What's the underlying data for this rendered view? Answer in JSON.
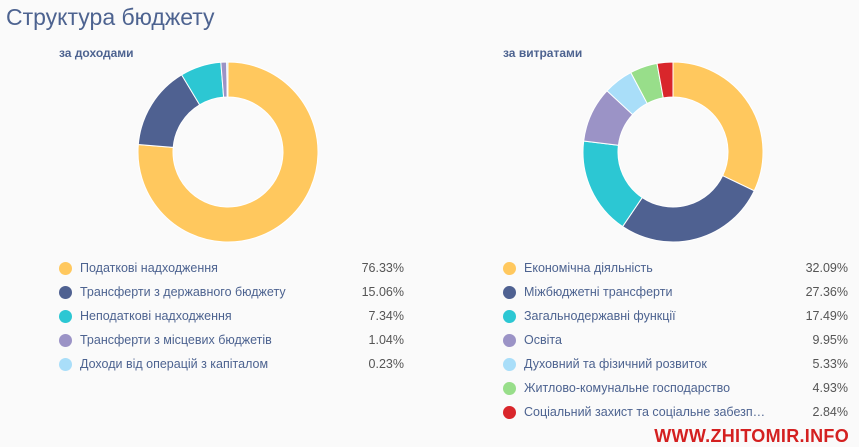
{
  "title": "Структура бюджету",
  "watermark": "WWW.ZHITOMIR.INFO",
  "chart_data": [
    {
      "type": "pie",
      "subtitle": "за доходами",
      "donut": true,
      "labels": [
        "Податкові надходження",
        "Трансферти з державного бюджету",
        "Неподаткові надходження",
        "Трансферти з місцевих бюджетів",
        "Доходи від операцій з капіталом"
      ],
      "values": [
        76.33,
        15.06,
        7.34,
        1.04,
        0.23
      ],
      "value_labels": [
        "76.33%",
        "15.06%",
        "7.34%",
        "1.04%",
        "0.23%"
      ],
      "colors": [
        "#FFC85E",
        "#4F6191",
        "#2CC7D3",
        "#9B93C6",
        "#A9DEF9"
      ],
      "legend": "bottom"
    },
    {
      "type": "pie",
      "subtitle": "за витратами",
      "donut": true,
      "labels": [
        "Економічна діяльність",
        "Міжбюджетні трансферти",
        "Загальнодержавні функції",
        "Освіта",
        "Духовний та фізичний розвиток",
        "Житлово-комунальне господарство",
        "Соціальний захист та соціальне забезпече…"
      ],
      "values": [
        32.09,
        27.36,
        17.49,
        9.95,
        5.33,
        4.93,
        2.84
      ],
      "value_labels": [
        "32.09%",
        "27.36%",
        "17.49%",
        "9.95%",
        "5.33%",
        "4.93%",
        "2.84%"
      ],
      "colors": [
        "#FFC85E",
        "#4F6191",
        "#2CC7D3",
        "#9B93C6",
        "#A9DEF9",
        "#98DE8A",
        "#D9262B"
      ],
      "legend": "bottom"
    }
  ]
}
